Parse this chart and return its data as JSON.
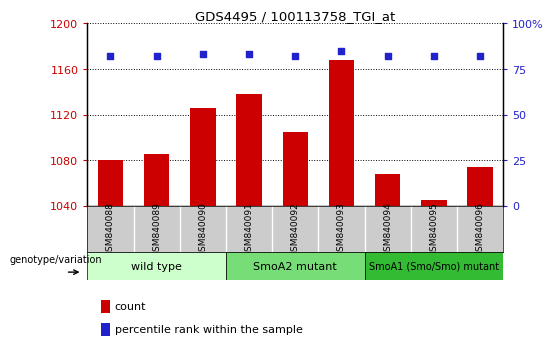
{
  "title": "GDS4495 / 100113758_TGI_at",
  "samples": [
    "GSM840088",
    "GSM840089",
    "GSM840090",
    "GSM840091",
    "GSM840092",
    "GSM840093",
    "GSM840094",
    "GSM840095",
    "GSM840096"
  ],
  "counts": [
    1080,
    1085,
    1126,
    1138,
    1105,
    1168,
    1068,
    1045,
    1074
  ],
  "percentile_ranks": [
    82,
    82,
    83,
    83,
    82,
    85,
    82,
    82,
    82
  ],
  "bar_color": "#cc0000",
  "dot_color": "#2222cc",
  "ylim_left": [
    1040,
    1200
  ],
  "ylim_right": [
    0,
    100
  ],
  "yticks_left": [
    1040,
    1080,
    1120,
    1160,
    1200
  ],
  "yticks_right": [
    0,
    25,
    50,
    75,
    100
  ],
  "groups": [
    {
      "label": "wild type",
      "start": 0,
      "end": 3,
      "color": "#ccffcc"
    },
    {
      "label": "SmoA2 mutant",
      "start": 3,
      "end": 6,
      "color": "#77dd77"
    },
    {
      "label": "SmoA1 (Smo/Smo) mutant",
      "start": 6,
      "end": 9,
      "color": "#33bb33"
    }
  ],
  "legend_count_color": "#cc0000",
  "legend_dot_color": "#2222cc",
  "xlabel_annotation": "genotype/variation",
  "tick_color_left": "#cc0000",
  "tick_color_right": "#2222cc",
  "label_bg_color": "#cccccc",
  "bar_width": 0.55
}
